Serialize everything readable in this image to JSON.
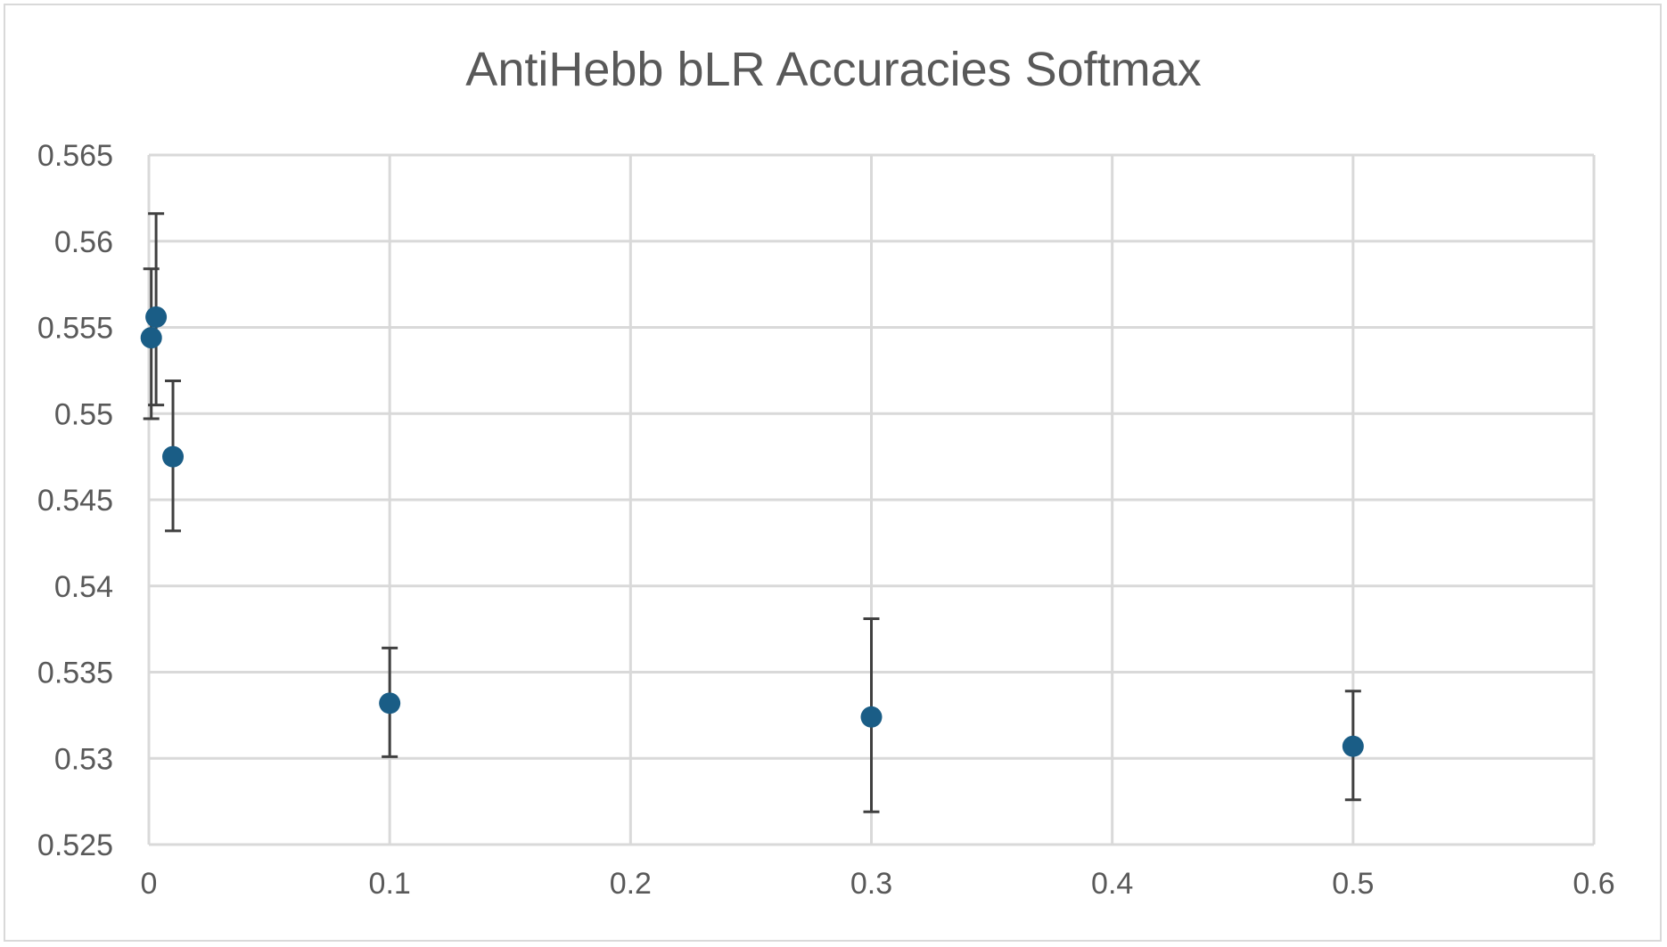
{
  "chart_data": {
    "type": "scatter",
    "title": "AntiHebb bLR Accuracies Softmax",
    "xlabel": "",
    "ylabel": "",
    "xlim": [
      0,
      0.6
    ],
    "ylim": [
      0.525,
      0.565
    ],
    "x_ticks": [
      "0",
      "0.1",
      "0.2",
      "0.3",
      "0.4",
      "0.5",
      "0.6"
    ],
    "y_ticks": [
      "0.565",
      "0.56",
      "0.555",
      "0.55",
      "0.545",
      "0.54",
      "0.535",
      "0.53",
      "0.525"
    ],
    "grid": true,
    "legend": "none",
    "marker_color": "#1a5d86",
    "error_bar_color": "#404040",
    "series": [
      {
        "points": [
          {
            "x": 0.001,
            "y": 0.5544,
            "err_low": 0.5497,
            "err_high": 0.5584
          },
          {
            "x": 0.003,
            "y": 0.5556,
            "err_low": 0.5505,
            "err_high": 0.5616
          },
          {
            "x": 0.01,
            "y": 0.5475,
            "err_low": 0.5432,
            "err_high": 0.5519
          },
          {
            "x": 0.1,
            "y": 0.5332,
            "err_low": 0.5301,
            "err_high": 0.5364
          },
          {
            "x": 0.3,
            "y": 0.5324,
            "err_low": 0.5269,
            "err_high": 0.5381
          },
          {
            "x": 0.5,
            "y": 0.5307,
            "err_low": 0.5276,
            "err_high": 0.5339
          }
        ]
      }
    ]
  }
}
